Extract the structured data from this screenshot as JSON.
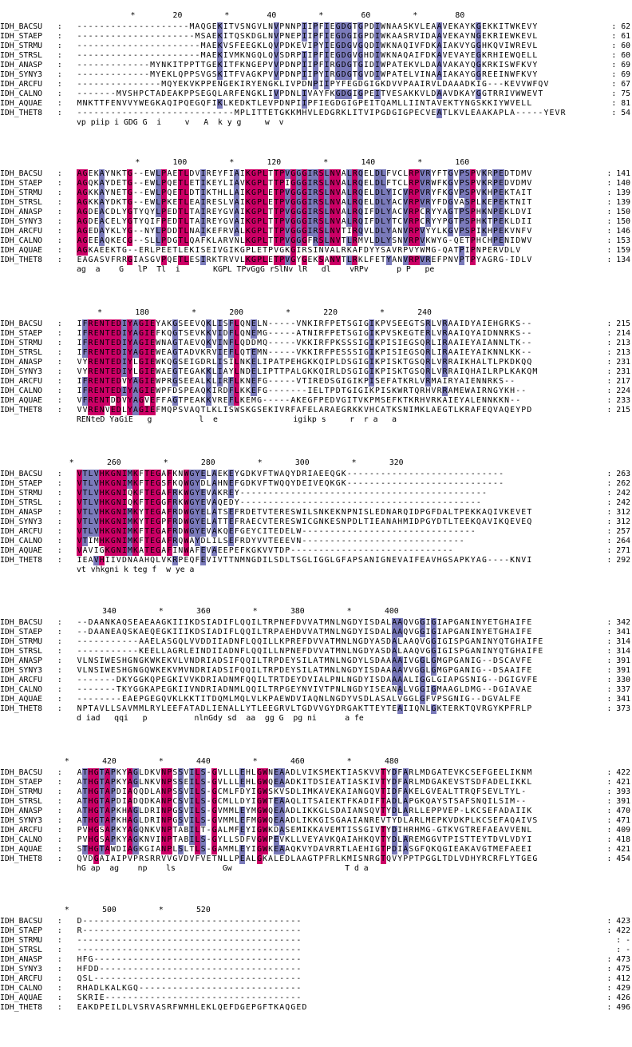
{
  "title": "",
  "sequences": [
    "IDH_BACSU",
    "IDH_STAEP",
    "IDH_STRMU",
    "IDH_STRSL",
    "IDH_ANASP",
    "IDH_SYNY3",
    "IDH_ARCFU",
    "IDH_CALNO",
    "IDH_AQUAE",
    "IDH_THET8"
  ],
  "legend": {
    "fully_conserved_color": "#cc0066",
    "highly_conserved_color": "#7a7aba",
    "moderately_conserved_color": "#a8a8d8"
  },
  "blocks": [
    {
      "ruler": "                         *        20         *        40         *        60         *        80",
      "rows": [
        {
          "name": "IDH_BACSU",
          "seq": "--------------------MAQGEKITVSNGVLNVPNNPIIPFIEGDGTGPDIWNAASKVLEAAVEKAYKGEKKITWKEVY",
          "num": "62"
        },
        {
          "name": "IDH_STAEP",
          "seq": "---------------------MSAEKITQSKDGLNVPNEPIIPFIEGDGIGPDIWKAASRVIDAAVEKAYNGEKRIEWKEVL",
          "num": "61"
        },
        {
          "name": "IDH_STRMU",
          "seq": "----------------------MAEKVSFEEGKLQVPDKEVIPYIEGDGVGQDIWKNAQIVFDKAIAKVYGGHKQVIWREVL",
          "num": "60"
        },
        {
          "name": "IDH_STRSL",
          "seq": "----------------------MAEKIVMKNGQLQVSDRPIIPFIEGDGVGHDIWKNAQAIFDKAVEVAYEGKRHIEWQELL",
          "num": "60"
        },
        {
          "name": "IDH_ANASP",
          "seq": "-------------MYNKITPPTTGEKITFKNGEPVVPDNPIIPFIRGDGTGIDIWPATEKVLDAAVAKAYQGKRKISWFKVY",
          "num": "69"
        },
        {
          "name": "IDH_SYNY3",
          "seq": "-------------MYEKLQPPSVGSKITFVAGKPVVPDNPIIPYIRGDGTGVDIWPATELVINAAIAKAYGGREEINWFKVY",
          "num": "69"
        },
        {
          "name": "IDH_ARCFU",
          "seq": "---------------MQYEKVKPPENGEKIRYENGKLIVPDNPIIPYFEGDGIGKDVVPAAIRVLDAAADKIG---KEVVWFQV",
          "num": "67"
        },
        {
          "name": "IDH_CALNO",
          "seq": "-------MVSHPCTADEAKPPSEGQLARFENGKLIVPDNLIVAYFKGDGIGPEITVESAKKVLDAAVDKAYGGTRRIVWWEVT",
          "num": "75"
        },
        {
          "name": "IDH_AQUAE",
          "seq": "MNKTTFENVVYWEGKAQIPQEGQFIKLKEDKTLEVPDNPIIPFIEGDGIGPEITQAMLLIINTAVEKTYNGSKKIYWVELL",
          "num": "81"
        },
        {
          "name": "IDH_THET8",
          "seq": "----------------------------MPLITTETGKKMHVLEDGRKLITVIPGDGIGPECVEATLKVLEAAKAPLA-----YEVR",
          "num": "54"
        }
      ],
      "consensus": "                                                vp piip i GDG G  i     v   A  k y g     w  v"
    },
    {
      "ruler": "                          *       100         *       120         *       140         *       160",
      "rows": [
        {
          "name": "IDH_BACSU",
          "seq": "AGEKAYNKTG--EWLPAETLDVIREYFIAIKGPLTTPVGGGIRSLNVALRQELDLFVCLRPVRYFTGVPSPVKRPEDTDMV",
          "num": "141"
        },
        {
          "name": "IDH_STAEP",
          "seq": "AGQKAYDETG--EWLPQETLETIKEYLIAVKGPLTTPIGGGIRSLNVALRQELDLFTCLRPVRWFKGVPSPVKRPEDVDMV",
          "num": "140"
        },
        {
          "name": "IDH_STRMU",
          "seq": "AGKKAYNETG--EWLPQETLDTIKTHLLAIKGPLETPVGGGIRSLNVALRQELDLYICVRPVRYFKGVPSPVKHPEKTAIT",
          "num": "139"
        },
        {
          "name": "IDH_STRSL",
          "seq": "AGKKAYDKTG--EWLPKETLEAIRESLVAIKGPLETPVGGGIRSLNVALRQELDLYACVRPVRYFDGVASPLKEPEKTNIT",
          "num": "139"
        },
        {
          "name": "IDH_ANASP",
          "seq": "AGDEACDLYGTYQYLPEDTLTAIREYGVAIKGPLTTPVGGGIRSLNVALRQIFDLYACVRPCRYYAGTPSPHKNPEKLDVI",
          "num": "150"
        },
        {
          "name": "IDH_SYNY3",
          "seq": "AGDEACELYGTYQIFPEDTLTAIREYGVAIKGPLTTPVGGGIRSLNVALRQIFDLYTCVRPCRYYPGTPSPHKTPEKLDII",
          "num": "150"
        },
        {
          "name": "IDH_ARCFU",
          "seq": "AGEDAYKLYG--NYLPDDTLNAIKEFRVALKGPLTTPVGGGIRSLNVTIRQVLDLYANVRPVYYLKGVPSPIKHPEKVNFV",
          "num": "146"
        },
        {
          "name": "IDH_CALNO",
          "seq": "AGEEAQKECG--SLLPDGTLQAFKLARVNLKGPLTTPVGGGFRSLNVTLRMVLDLYSNVRPVKWYG-QETPHCHPENIDWV",
          "num": "153"
        },
        {
          "name": "IDH_AQUAE",
          "seq": "AGKAEEKTG--ERLPEETLEKISEIVGIKGPLETPVGKGIRSINVALRKAFDYYSAVRPVYWMG-QATPIPNPERVDLV",
          "num": "159"
        },
        {
          "name": "IDH_THET8",
          "seq": "EAGASVFRRGIASGVPQETLESIRKTRVVLKGPLETPVGYGEKSANVTLRKLFETYANVRPVREFPNVPTPYAGRG-IDLV",
          "num": "134"
        }
      ],
      "consensus": "ag  a    G   lP  Tl  i       KGPL TPvGgG rSlNv lR   dl    vRPv      p P   pe"
    },
    {
      "ruler": "                  *       180         *       200         *       220         *       240",
      "rows": [
        {
          "name": "IDH_BACSU",
          "seq": "IFRENTEDIYAGIEYAKGSEEVQKLISFLQNELN-----VNKIRFPETSGIGIKPVSEEGTSRLVRAAIDYAIEHGRKS--",
          "num": "215"
        },
        {
          "name": "IDH_STAEP",
          "seq": "IFRENTEDIYAGIEFKQGTSEVKKVIDFLQNEMG-----ATNIRFPETSGIGIKPVSKEGTERLVRAAIQYAIDNNRKS--",
          "num": "214"
        },
        {
          "name": "IDH_STRMU",
          "seq": "IFRENTEDIYAGIEWNAGTAEVQKVINFLQDDMQ-----VKKIRFPKSSSIGIKPISIEGSQRLIRAAIEYAIANNLTK--",
          "num": "213"
        },
        {
          "name": "IDH_STRSL",
          "seq": "IFRENTEDIYAGIEWEAGTADVKRVIEFLQTEMN-----VKKIRFPESSSIGIKPISIEGSQRLIRAAIEYAIKNNLKK--",
          "num": "213"
        },
        {
          "name": "IDH_ANASP",
          "seq": "VYRENTEDIYLGIEWKQGSEIGDRLISILNKELIPATPEHGKKQIPLDSGIGIKPISKTGSQRLVRRAIKHALTLPKDKQQ",
          "num": "231"
        },
        {
          "name": "IDH_SYNY3",
          "seq": "VYRENTEDIYLGIEWAEGTEGAKKLIAYLNDELIPTTPALGKKQIRLDSGIGIKPISKTGSQRLVRRAIQHAILRPLKAKQM",
          "num": "231"
        },
        {
          "name": "IDH_ARCFU",
          "seq": "IFRENTEDVYAGIEWPRGSEEALKLIRFLKNEFG-----VTIREDSGIGIKPISEFATKRLVRMAIRYAIENNRKS--",
          "num": "217"
        },
        {
          "name": "IDH_CALNO",
          "seq": "IFRENTEDIYAGIEWPFDSPEAQKIRDFLKKEFG-------IELTPDTGIGIKPISKWRTQRHVRRAMEWAIRNGYKH--",
          "num": "224"
        },
        {
          "name": "IDH_AQUAE",
          "seq": "VFRENTDDVYAGVEFFAGTPEAKKVREFLKEMG-----AKEGFPEDVGITVKPMSEFKTKRHVRKAIEYALENNKKN--",
          "num": "233"
        },
        {
          "name": "IDH_THET8",
          "seq": "VVRENVEDLYAGIEFMQPSVAQTLKLISWSKGSEKIVRFAFELARAEGRKKVHCATKSNIMKLAEGTLKRAFEQVAQEYPD",
          "num": "215"
        }
      ],
      "consensus": "RENteD YaGiE   g          l  e                igikp s     r  r a   a"
    },
    {
      "ruler": "            *       260         *       280         *       300         *       320",
      "rows": [
        {
          "name": "IDH_BACSU",
          "seq": "VTLVHKGNIMKFTEGAFKNWGYELAEKEYGDKVFTWAQYDRIAEEQGK----------------------------",
          "num": "263"
        },
        {
          "name": "IDH_STAEP",
          "seq": "VTLVHKGNIMKFTEGSFKQWGYDLAHNEFGDKVFTWQQYDEIVEQKGK----------------------------",
          "num": "262"
        },
        {
          "name": "IDH_STRMU",
          "seq": "VTLVHKGNIQKFTEGAFRKWGYEVAKREY--------------------------------------------",
          "num": "242"
        },
        {
          "name": "IDH_STRSL",
          "seq": "VTLVHKGNIQKFTEGGFRKWGYEVAQEDY-------------------------------------------",
          "num": "242"
        },
        {
          "name": "IDH_ANASP",
          "seq": "VTLVHKGNIMKYTEGAFRDWGYELATSEFRDETVTERESWILSNKEKNPNISLEDNARQIDPGFDALTPEKKAQIVKEVET",
          "num": "312"
        },
        {
          "name": "IDH_SYNY3",
          "seq": "VTLVHKGNIMKYTEGPFRDWGYELATTEFRAECVTERESWICGNKESNPDLTIEANAHMIDPGYDTLTEEKQAVIKQEVEQ",
          "num": "312"
        },
        {
          "name": "IDH_ARCFU",
          "seq": "VTLVHKGNIMKFTEGAFRDWGYEVAKQEFGEYCITEDELW-------------------------------",
          "num": "257"
        },
        {
          "name": "IDH_CALNO",
          "seq": "VTIMHKGNIMKFTEGAFRQWAYDLILSEFRDYVVTEEEVN-----------------------------",
          "num": "264"
        },
        {
          "name": "IDH_AQUAE",
          "seq": "VAVIGKGNIMKATEGAFINWAFEVAEEPEFKGKVVTDP-----------------------------",
          "num": "271"
        },
        {
          "name": "IDH_THET8",
          "seq": "IEAVHIIVDNAAHQLVKRPEQFEVIVTTNMNGDILSDLTSGLIGGLGFAPSANIGNEVAIFEAVHGSAPKYAG----KNVI",
          "num": "292"
        }
      ],
      "consensus": "vt vhkgni k teg f  w ye a"
    },
    {
      "ruler": "                   340         *       360         *       380         *       400",
      "rows": [
        {
          "name": "IDH_BACSU",
          "seq": "--DAANKAQSEAEAAGKIIIKDSIADIFLQQILTRPNEFDVVATMNLNGDYISDALAAQVGGIGIAPGANINYETGHAIFE",
          "num": "342"
        },
        {
          "name": "IDH_STAEP",
          "seq": "--DAANEAQSKAEQEGKIIIKDSIADIFLQQILTRPAEHDVVATMNLNGDYISDALAAQVGGIGIAPGANINYETGHAIFE",
          "num": "341"
        },
        {
          "name": "IDH_STRMU",
          "seq": "-----------AAELASGQLVVDDIIADNFLQQILLKPREFDVVATMNLNGDYASDALAAQVGGIGISPGANINYQTGHAIFE",
          "num": "314"
        },
        {
          "name": "IDH_STRSL",
          "seq": "-----------KEELLAGRLEINDIIADNFLQQILLNPNEFDVVATMNLNGDYASDALAAQVGGIGISPGANINYQTGHAIFE",
          "num": "314"
        },
        {
          "name": "IDH_ANASP",
          "seq": "VLNSIWESHGNGKWKEKVLVNDRIADSIFQQILTRPDEYSILATMNLNGDYLSDAAAAIVGGLGMGPGANIG--DSCAVFE",
          "num": "391"
        },
        {
          "name": "IDH_SYNY3",
          "seq": "VLNSIWESHGNGQWKEKVMVNDRIADSIFQQILTRPDEYSILATMNLNGDYISDAAAAVVGGLGMGPGANIG--DSAAIFE",
          "num": "391"
        },
        {
          "name": "IDH_ARCFU",
          "seq": "-------DKYGGKQPEGKIVVKDRIADNMFQQILTRTDEYDVIALPNLNGDYISDAAAALIGGLGIAPGSNIG--DGIGVFE",
          "num": "330"
        },
        {
          "name": "IDH_CALNO",
          "seq": "-------TKYGGKAPEGKIIVNDRIADNMLQQILTRPGEYNVIVTPNLNGDYISEANALVGGIGMAAGLDMG--DGIAVAE",
          "num": "337"
        },
        {
          "name": "IDH_AQUAE",
          "seq": "--------EAEPGEGQVKLKKTITDQMLMQLVLKPAEWDVIAQNLNGDYVSDLASALVGGLGFVPSGNIG--DGVALFE",
          "num": "341"
        },
        {
          "name": "IDH_THET8",
          "seq": "NPTAVLLSAVMMLRYLEEFATADLIENALLYTLEEGRVLTGDVVGYDRGAKTTEYTEAIIQNLGKTERKTQVRGYKPFRLP",
          "num": "373"
        }
      ],
      "consensus": "d iad   qqi   p          nlnGdy sd  aa  gg G  pg ni      a fe"
    },
    {
      "ruler": "           *       420         *       440         *       460         *       480",
      "rows": [
        {
          "name": "IDH_BACSU",
          "seq": "ATHGTAPKYAGLDKVNPSSVILS-GVLLLEHLGWNEAADLVIKSMEKTIASKVVTYDFARLMDGATEVKCSEFGEELIKNM",
          "num": "422"
        },
        {
          "name": "IDH_STAEP",
          "seq": "ATHGTAPKYAGLNKVNPSSEILS-GVLLLEHLGWQEAADKITDSIEATIASKIVTYDFARLMDGAKEVSTSDFADELIKKL",
          "num": "421"
        },
        {
          "name": "IDH_STRMU",
          "seq": "ATHGTAPDIAQQDLANPSSVILS-GCMLFDYIGWSKVSDLIMKAVEKAIANGQVTIDFAKELGVEALTTRQFSEVLTYL-",
          "num": "393"
        },
        {
          "name": "IDH_STRSL",
          "seq": "ATHGTAPDIADQDKANPCSVILS-GCMLLDYIGWTEAAQLITSAIEKTFKADIFTADLAPGKQAYSTSAFSNQILSIM--",
          "num": "391"
        },
        {
          "name": "IDH_ANASP",
          "seq": "ATHGTAPKHAGLDRINPGSVILS-GVMMLEYMGWQEAADLIKKGLSDAIANSQVTYDLARLLEPPVEP-LKCSEFADAIIK",
          "num": "470"
        },
        {
          "name": "IDH_SYNY3",
          "seq": "ATHGTAPKHAGLDRINPGSVILS-GVMMLEFMGWQEAADLIKKGISGAAIANREVTYDLARLMEPKVDKPLKCSEFAQAIVS",
          "num": "471"
        },
        {
          "name": "IDH_ARCFU",
          "seq": "PVHGSAPKYAGQNKVNPTABILT-GALMFEYIGWKDASEMIKKAVEMTISSGIVTYDIHRHMG-GTKVGTREFAEAVVENL",
          "num": "409"
        },
        {
          "name": "IDH_CALNO",
          "seq": "PVHGSAPKYAGKNVINPTABILS-GYLLSDFVGWPEVKLLVEYAVKQAIAHKQVTYDLAREMGGVTPISTTEYTDVLVDYI",
          "num": "418"
        },
        {
          "name": "IDH_AQUAE",
          "seq": "STHGTAWDIAGKGIANPLSLTLS-GAMMLEYIGWKEAAQKVYDAVRRTLAEHIGTPDIASGFQKQGIEAKAVGTMEFAEEI",
          "num": "421"
        },
        {
          "name": "IDH_THET8",
          "seq": "QVDGAIAIPVPRSRRVVGVDVFVETNLLPEALGKALEDLAAGTPFRLKMISNRGTQVYPPTPGGLTDLVDHYRCRFLYTGEG",
          "num": "454"
        }
      ],
      "consensus": "hG ap  ag    np    ls          Gw                        T d a"
    },
    {
      "ruler": "           *       500         *       520",
      "rows": [
        {
          "name": "IDH_BACSU",
          "seq": "D---------------------------------------",
          "num": "423"
        },
        {
          "name": "IDH_STAEP",
          "seq": "R---------------------------------------",
          "num": "422"
        },
        {
          "name": "IDH_STRMU",
          "seq": "----------------------------------------",
          "num": "-"
        },
        {
          "name": "IDH_STRSL",
          "seq": "----------------------------------------",
          "num": "-"
        },
        {
          "name": "IDH_ANASP",
          "seq": "HFG-------------------------------------",
          "num": "473"
        },
        {
          "name": "IDH_SYNY3",
          "seq": "HFDD------------------------------------",
          "num": "475"
        },
        {
          "name": "IDH_ARCFU",
          "seq": "QSL-------------------------------------",
          "num": "412"
        },
        {
          "name": "IDH_CALNO",
          "seq": "RHADLKALKGQ-----------------------------",
          "num": "429"
        },
        {
          "name": "IDH_AQUAE",
          "seq": "SKRIE-----------------------------------",
          "num": "426"
        },
        {
          "name": "IDH_THET8",
          "seq": "EAKDPEILDLVSRVASRFWMHLEKLQEFDGEPGFTKAQGED",
          "num": "496"
        }
      ],
      "consensus": ""
    }
  ]
}
